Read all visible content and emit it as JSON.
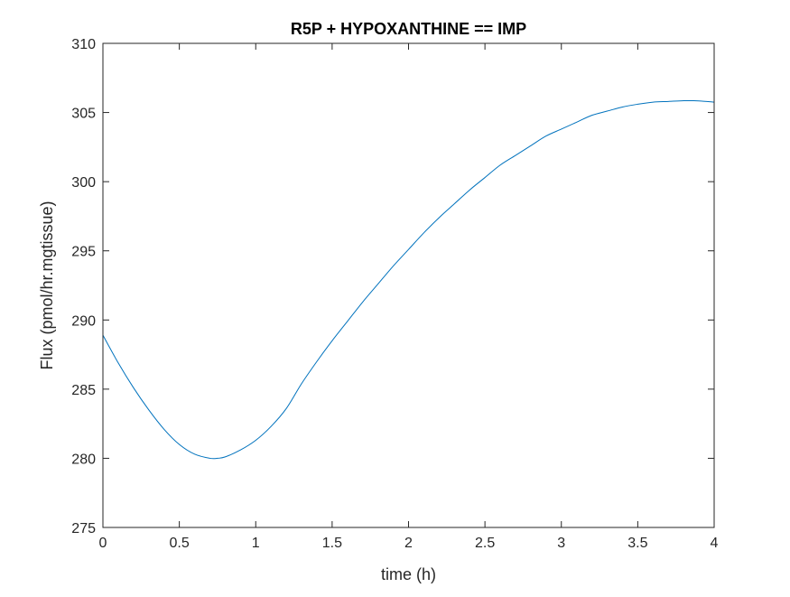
{
  "chart_data": {
    "type": "line",
    "title": "R5P + HYPOXANTHINE == IMP",
    "xlabel": "time (h)",
    "ylabel": "Flux (pmol/hr.mgtissue)",
    "xlim": [
      0,
      4
    ],
    "ylim": [
      275,
      310
    ],
    "xticks": [
      0,
      0.5,
      1,
      1.5,
      2,
      2.5,
      3,
      3.5,
      4
    ],
    "xtick_labels": [
      "0",
      "0.5",
      "1",
      "1.5",
      "2",
      "2.5",
      "3",
      "3.5",
      "4"
    ],
    "yticks": [
      275,
      280,
      285,
      290,
      295,
      300,
      305,
      310
    ],
    "ytick_labels": [
      "275",
      "280",
      "285",
      "290",
      "295",
      "300",
      "305",
      "310"
    ],
    "grid": false,
    "line_color": "#0072bd",
    "series": [
      {
        "x": [
          0,
          0.1,
          0.2,
          0.3,
          0.4,
          0.5,
          0.6,
          0.7,
          0.75,
          0.8,
          0.9,
          1.0,
          1.1,
          1.2,
          1.3,
          1.4,
          1.5,
          1.6,
          1.7,
          1.8,
          1.9,
          2.0,
          2.1,
          2.2,
          2.3,
          2.4,
          2.5,
          2.6,
          2.7,
          2.8,
          2.9,
          3.0,
          3.1,
          3.2,
          3.3,
          3.4,
          3.5,
          3.6,
          3.7,
          3.8,
          3.85,
          3.9,
          4.0
        ],
        "y": [
          288.9,
          286.9,
          285.1,
          283.5,
          282.1,
          281.0,
          280.3,
          280.0,
          280.0,
          280.1,
          280.6,
          281.3,
          282.3,
          283.6,
          285.4,
          287.0,
          288.5,
          289.9,
          291.3,
          292.6,
          293.9,
          295.1,
          296.3,
          297.4,
          298.4,
          299.4,
          300.3,
          301.2,
          301.9,
          302.6,
          303.3,
          303.8,
          304.3,
          304.8,
          305.1,
          305.4,
          305.6,
          305.75,
          305.8,
          305.85,
          305.85,
          305.84,
          305.75
        ]
      }
    ]
  }
}
